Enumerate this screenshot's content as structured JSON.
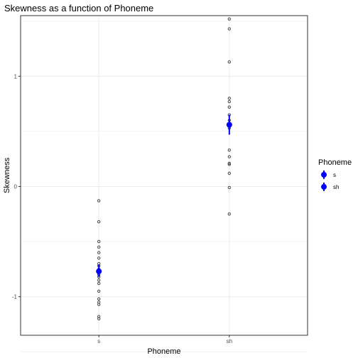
{
  "chart_data": {
    "type": "scatter",
    "title": "Skewness as a function of Phoneme",
    "xlabel": "Phoneme",
    "ylabel": "Skewness",
    "categories": [
      "s",
      "sh"
    ],
    "ylim": [
      -1.35,
      1.55
    ],
    "yticks": [
      -1,
      0,
      1
    ],
    "grid": true,
    "legend": {
      "title": "Phoneme",
      "position": "right",
      "entries": [
        "s",
        "sh"
      ]
    },
    "points": {
      "s": [
        -0.13,
        -0.32,
        -0.5,
        -0.55,
        -0.6,
        -0.65,
        -0.7,
        -0.72,
        -0.75,
        -0.8,
        -0.82,
        -0.85,
        -0.88,
        -0.95,
        -1.02,
        -1.05,
        -1.07,
        -1.18,
        -1.2
      ],
      "sh": [
        1.52,
        1.43,
        1.13,
        0.8,
        0.77,
        0.72,
        0.65,
        0.6,
        0.56,
        0.53,
        0.33,
        0.27,
        0.21,
        0.2,
        0.12,
        -0.01,
        -0.25
      ]
    },
    "summary": [
      {
        "category": "s",
        "mean": -0.77,
        "ymin": -0.82,
        "ymax": -0.71
      },
      {
        "category": "sh",
        "mean": 0.56,
        "ymin": 0.47,
        "ymax": 0.65
      }
    ],
    "colors": {
      "summary": "#0000ff",
      "points": "#4d4d4d",
      "grid": "#ebebeb",
      "panel_border": "#333333"
    }
  }
}
